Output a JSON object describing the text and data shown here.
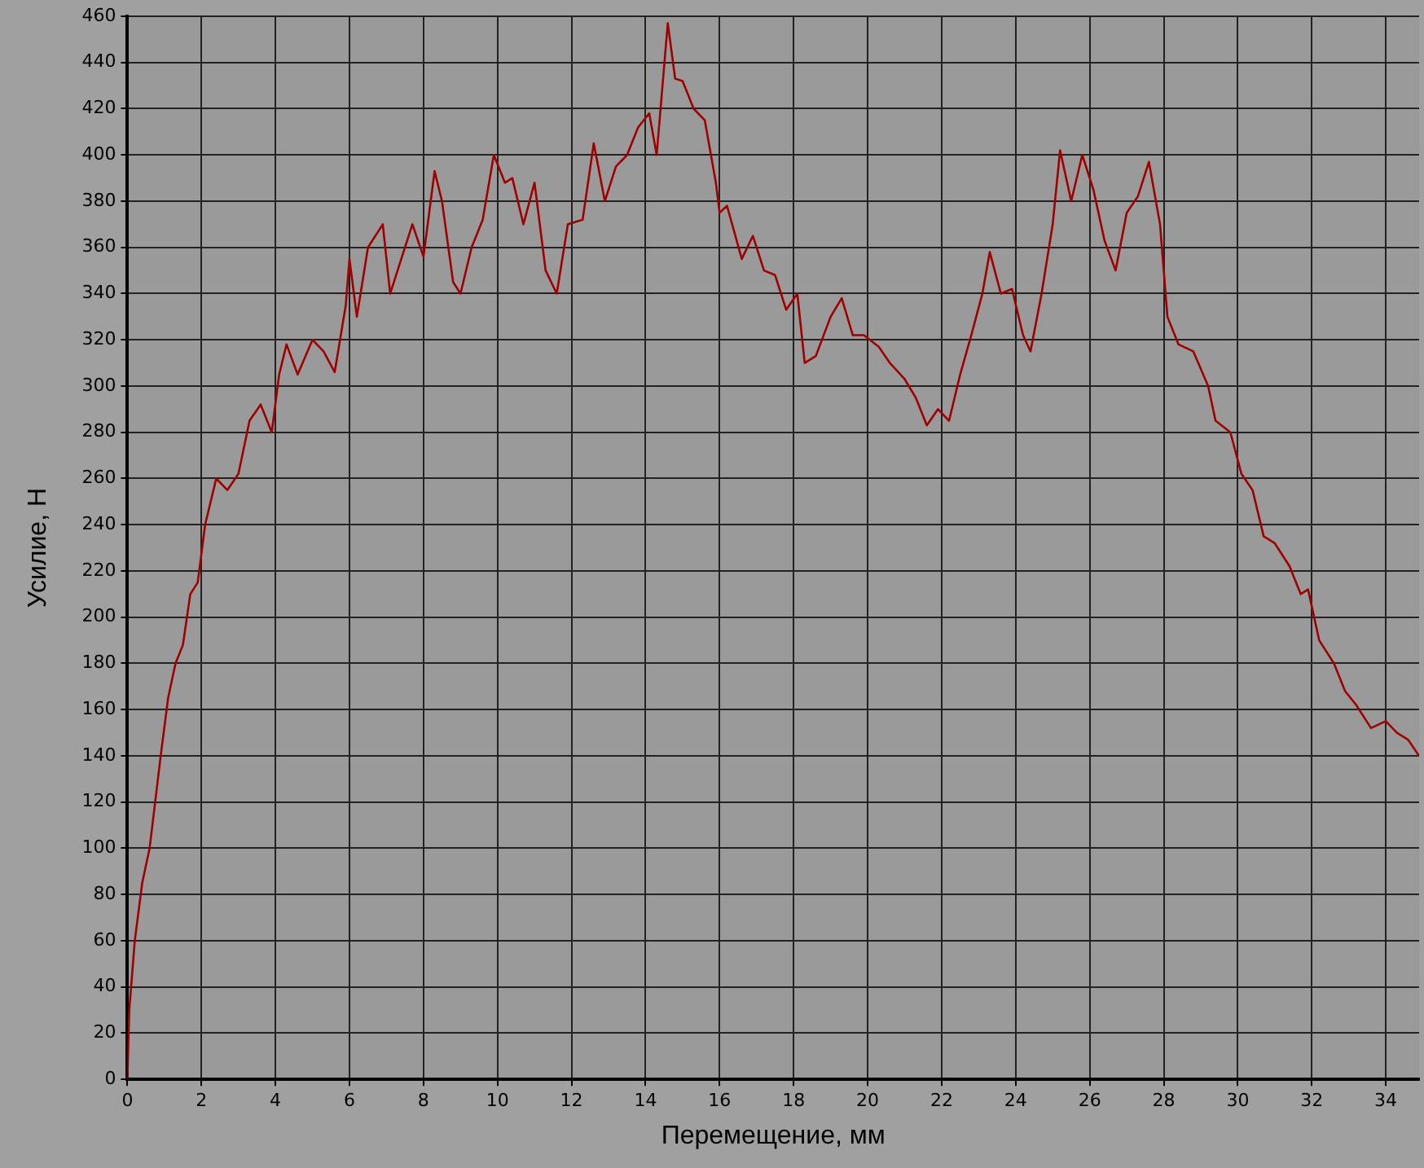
{
  "chart_data": {
    "type": "line",
    "xlabel": "Перемещение, мм",
    "ylabel": "Усилие, Н",
    "x": [
      0,
      0.05,
      0.2,
      0.4,
      0.6,
      0.9,
      1.1,
      1.3,
      1.5,
      1.7,
      1.9,
      2.1,
      2.4,
      2.7,
      3.0,
      3.3,
      3.6,
      3.9,
      4.1,
      4.3,
      4.6,
      5.0,
      5.3,
      5.6,
      5.9,
      6.0,
      6.2,
      6.5,
      6.9,
      7.1,
      7.4,
      7.7,
      8.0,
      8.3,
      8.5,
      8.8,
      9.0,
      9.3,
      9.6,
      9.9,
      10.2,
      10.4,
      10.7,
      11.0,
      11.3,
      11.6,
      11.9,
      12.3,
      12.6,
      12.9,
      13.2,
      13.5,
      13.8,
      14.1,
      14.3,
      14.6,
      14.8,
      15.0,
      15.3,
      15.6,
      15.9,
      16.0,
      16.2,
      16.6,
      16.9,
      17.2,
      17.5,
      17.8,
      18.1,
      18.3,
      18.6,
      19.0,
      19.3,
      19.6,
      19.9,
      20.3,
      20.6,
      21.0,
      21.3,
      21.6,
      21.9,
      22.2,
      22.5,
      22.8,
      23.1,
      23.3,
      23.6,
      23.9,
      24.2,
      24.4,
      24.7,
      25.0,
      25.2,
      25.5,
      25.8,
      26.1,
      26.4,
      26.7,
      27.0,
      27.3,
      27.6,
      27.9,
      28.1,
      28.4,
      28.8,
      29.2,
      29.4,
      29.8,
      30.1,
      30.4,
      30.7,
      31.0,
      31.4,
      31.7,
      31.9,
      32.2,
      32.6,
      32.9,
      33.2,
      33.6,
      34.0,
      34.3,
      34.6,
      34.9
    ],
    "series": [
      {
        "color": "#a00000",
        "values": [
          0,
          30,
          60,
          85,
          100,
          140,
          165,
          180,
          188,
          210,
          215,
          240,
          260,
          255,
          262,
          285,
          292,
          280,
          305,
          318,
          305,
          320,
          315,
          306,
          335,
          355,
          330,
          360,
          370,
          340,
          355,
          370,
          356,
          393,
          380,
          345,
          340,
          360,
          372,
          400,
          388,
          390,
          370,
          388,
          350,
          340,
          370,
          372,
          405,
          380,
          395,
          400,
          412,
          418,
          400,
          457,
          433,
          432,
          420,
          415,
          388,
          375,
          378,
          355,
          365,
          350,
          348,
          333,
          340,
          310,
          313,
          330,
          338,
          322,
          322,
          317,
          310,
          303,
          295,
          283,
          290,
          285,
          305,
          322,
          340,
          358,
          340,
          342,
          322,
          315,
          340,
          370,
          402,
          380,
          400,
          385,
          363,
          350,
          375,
          382,
          397,
          370,
          330,
          318,
          315,
          300,
          285,
          280,
          262,
          255,
          235,
          232,
          222,
          210,
          212,
          190,
          180,
          168,
          162,
          152,
          155,
          150,
          147,
          140
        ]
      }
    ],
    "xlim": [
      0,
      34.9
    ],
    "xticks": [
      0,
      2,
      4,
      6,
      8,
      10,
      12,
      14,
      16,
      18,
      20,
      22,
      24,
      26,
      28,
      30,
      32,
      34
    ],
    "ylim": [
      0,
      460
    ],
    "yticks": [
      0,
      20,
      40,
      60,
      80,
      100,
      120,
      140,
      160,
      180,
      200,
      220,
      240,
      260,
      280,
      300,
      320,
      340,
      360,
      380,
      400,
      420,
      440,
      460
    ],
    "grid": true,
    "legend": false,
    "marker": "none",
    "line_style": "solid"
  }
}
